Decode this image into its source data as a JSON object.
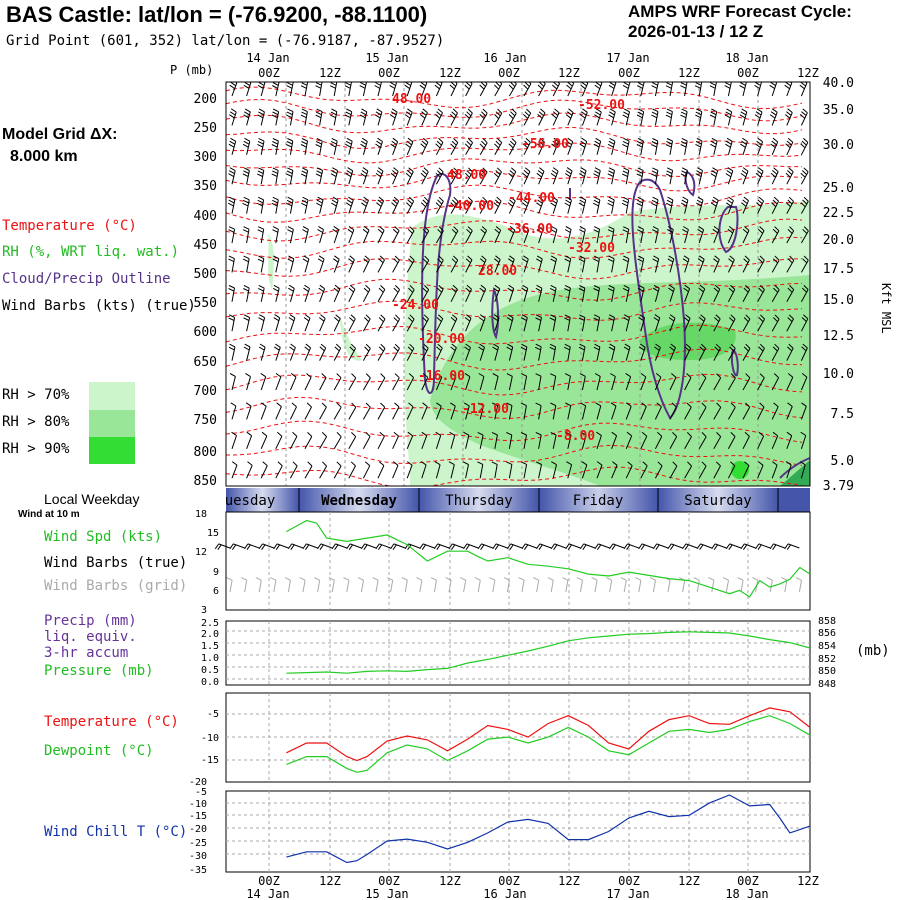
{
  "header": {
    "title": "BAS Castle:  lat/lon = (-76.9200, -88.1100)",
    "subtitle": "Grid Point (601, 352) lat/lon = (-76.9187, -87.9527)",
    "cycle_label": "AMPS WRF Forecast Cycle:",
    "cycle_value": "2026-01-13 / 12  Z",
    "grid_label": "Model Grid ΔX:",
    "grid_value": "8.000 km"
  },
  "legend": {
    "temperature": "Temperature (°C)",
    "rh": "RH (%, WRT liq. wat.)",
    "cloud": "Cloud/Precip Outline",
    "wind": "Wind Barbs (kts) (true)",
    "rh70": "RH > 70%",
    "rh80": "RH > 80%",
    "rh90": "RH > 90%",
    "colors": {
      "rh70": "#ccf5cc",
      "rh80": "#99e699",
      "rh90": "#33dd33",
      "temp": "#ee1111",
      "cloud": "#553388"
    }
  },
  "time_axis": {
    "top_dates": [
      "14 Jan",
      "15 Jan",
      "16 Jan",
      "17 Jan",
      "18 Jan"
    ],
    "hour_ticks": [
      "00Z",
      "12Z",
      "00Z",
      "12Z",
      "00Z",
      "12Z",
      "00Z",
      "12Z",
      "00Z",
      "12Z"
    ],
    "bottom_dates": [
      "14 Jan",
      "15 Jan",
      "16 Jan",
      "17 Jan",
      "18 Jan"
    ]
  },
  "pressure_axis": {
    "label": "P (mb)",
    "levels": [
      "200",
      "250",
      "300",
      "350",
      "400",
      "450",
      "500",
      "550",
      "600",
      "650",
      "700",
      "750",
      "800",
      "850"
    ],
    "height_label": "Kft MSL",
    "heights": [
      "40.0",
      "35.0",
      "30.0",
      "25.0",
      "22.5",
      "20.0",
      "17.5",
      "15.0",
      "12.5",
      "10.0",
      "7.5",
      "5.0",
      "3.79"
    ]
  },
  "temperature_labels": [
    "48.00",
    "-52.00",
    "-56.00",
    "48.00",
    "-40.00",
    "-44.00",
    "-36.00",
    "-32.00",
    "28.00",
    "-24.00",
    "-20.00",
    "-16.00",
    "-12.00",
    "-8.00"
  ],
  "weekday_bar": {
    "label": "Local Weekday",
    "sublabel": "Wind at 10 m",
    "days": [
      "uesday",
      "Wednesday",
      "Thursday",
      "Friday",
      "Saturday"
    ]
  },
  "panels": {
    "wind": {
      "label_speed": "Wind Spd (kts)",
      "label_barbs": "Wind Barbs (true)",
      "label_grid": "Wind Barbs (grid)",
      "yticks": [
        "18",
        "15",
        "12",
        "9",
        "6",
        "3"
      ]
    },
    "precip": {
      "label_precip": "Precip (mm)",
      "label_liq": "liq. equiv.",
      "label_accum": "3-hr accum",
      "label_pressure": "Pressure (mb)",
      "unit_right": "(mb)",
      "yticks_left": [
        "2.5",
        "2.0",
        "1.5",
        "1.0",
        "0.5",
        "0.0"
      ],
      "yticks_right": [
        "858",
        "856",
        "854",
        "852",
        "850",
        "848"
      ]
    },
    "temp": {
      "label_temp": "Temperature (°C)",
      "label_dew": "Dewpoint (°C)",
      "yticks": [
        "-5",
        "-10",
        "-15",
        "-20"
      ]
    },
    "chill": {
      "label": "Wind Chill T (°C)",
      "yticks": [
        "-5",
        "-10",
        "-15",
        "-20",
        "-25",
        "-30",
        "-35"
      ]
    }
  },
  "chart_data": [
    {
      "type": "line",
      "title": "Wind Spd (kts)",
      "ylim": [
        3,
        18
      ],
      "x_hours": [
        0,
        6,
        9,
        12,
        18,
        24,
        30,
        36,
        42,
        48,
        54,
        57,
        60,
        66,
        72,
        78,
        84,
        90,
        96,
        102,
        108,
        114,
        120,
        126,
        132,
        135,
        138,
        141,
        144,
        147,
        150,
        153,
        156
      ],
      "series": [
        {
          "name": "Wind Speed",
          "color": "#22cc22",
          "values": [
            15,
            16.7,
            16.3,
            14,
            13.5,
            14,
            14.5,
            13,
            10.5,
            12,
            12,
            11.2,
            10.5,
            11,
            10,
            9.7,
            9.3,
            8.5,
            8.2,
            8.8,
            8.3,
            7.8,
            7.5,
            6.5,
            5.5,
            6,
            5,
            7.5,
            6.5,
            7,
            7.7,
            9.5,
            8.5
          ]
        }
      ]
    },
    {
      "type": "line",
      "title": "Pressure (mb)",
      "ylim": [
        848,
        858
      ],
      "x_hours": [
        0,
        6,
        12,
        18,
        24,
        30,
        36,
        42,
        48,
        54,
        60,
        66,
        72,
        78,
        84,
        90,
        96,
        102,
        108,
        114,
        120,
        126,
        132,
        138,
        144,
        150,
        156
      ],
      "series": [
        {
          "name": "Pressure",
          "color": "#22cc22",
          "values": [
            849.8,
            849.9,
            850.0,
            849.8,
            850.1,
            850.2,
            850.1,
            850.4,
            850.6,
            851.5,
            852.1,
            852.8,
            853.5,
            854.3,
            855.2,
            855.7,
            856.0,
            856.3,
            856.4,
            856.6,
            856.7,
            856.6,
            856.5,
            856.0,
            855.4,
            854.9,
            854.0
          ]
        }
      ]
    },
    {
      "type": "line",
      "title": "Temperature / Dewpoint (°C)",
      "ylim": [
        -20,
        0
      ],
      "x_hours": [
        0,
        6,
        12,
        18,
        21,
        24,
        30,
        36,
        42,
        48,
        54,
        60,
        66,
        72,
        78,
        84,
        90,
        96,
        102,
        108,
        114,
        120,
        126,
        132,
        138,
        144,
        150,
        156
      ],
      "series": [
        {
          "name": "Temperature",
          "color": "#ee1111",
          "values": [
            -12.5,
            -10,
            -10,
            -13.5,
            -14.5,
            -13.5,
            -9.5,
            -8.2,
            -9.2,
            -12,
            -9,
            -5.5,
            -6.5,
            -8.5,
            -5,
            -3,
            -5.5,
            -10,
            -11.5,
            -7,
            -4,
            -3,
            -5,
            -5.2,
            -3,
            -1,
            -2,
            -6
          ]
        },
        {
          "name": "Dewpoint",
          "color": "#22cc22",
          "values": [
            -15.5,
            -13.5,
            -13.5,
            -16.5,
            -17.5,
            -17,
            -12.5,
            -10.5,
            -11.5,
            -14.5,
            -12,
            -9,
            -8.5,
            -10,
            -8.5,
            -6,
            -8.5,
            -12,
            -13,
            -10,
            -7,
            -6.5,
            -7.3,
            -6.5,
            -4.5,
            -3,
            -5,
            -8
          ]
        }
      ]
    },
    {
      "type": "line",
      "title": "Wind Chill T (°C)",
      "ylim": [
        -35,
        -5
      ],
      "x_hours": [
        0,
        6,
        12,
        18,
        21,
        24,
        30,
        36,
        42,
        48,
        54,
        60,
        66,
        72,
        78,
        84,
        90,
        96,
        102,
        108,
        114,
        120,
        126,
        132,
        138,
        144,
        147,
        150,
        156
      ],
      "series": [
        {
          "name": "Wind Chill",
          "color": "#1133aa",
          "values": [
            -29.5,
            -27.5,
            -27.5,
            -31.5,
            -30.8,
            -28.5,
            -23.5,
            -22.8,
            -24,
            -26.5,
            -24,
            -20.5,
            -16.5,
            -15.5,
            -17,
            -23,
            -23,
            -20,
            -15,
            -12.5,
            -14.5,
            -14,
            -9.5,
            -6.5,
            -10.5,
            -10,
            -15,
            -20.5,
            -18
          ]
        }
      ]
    }
  ]
}
